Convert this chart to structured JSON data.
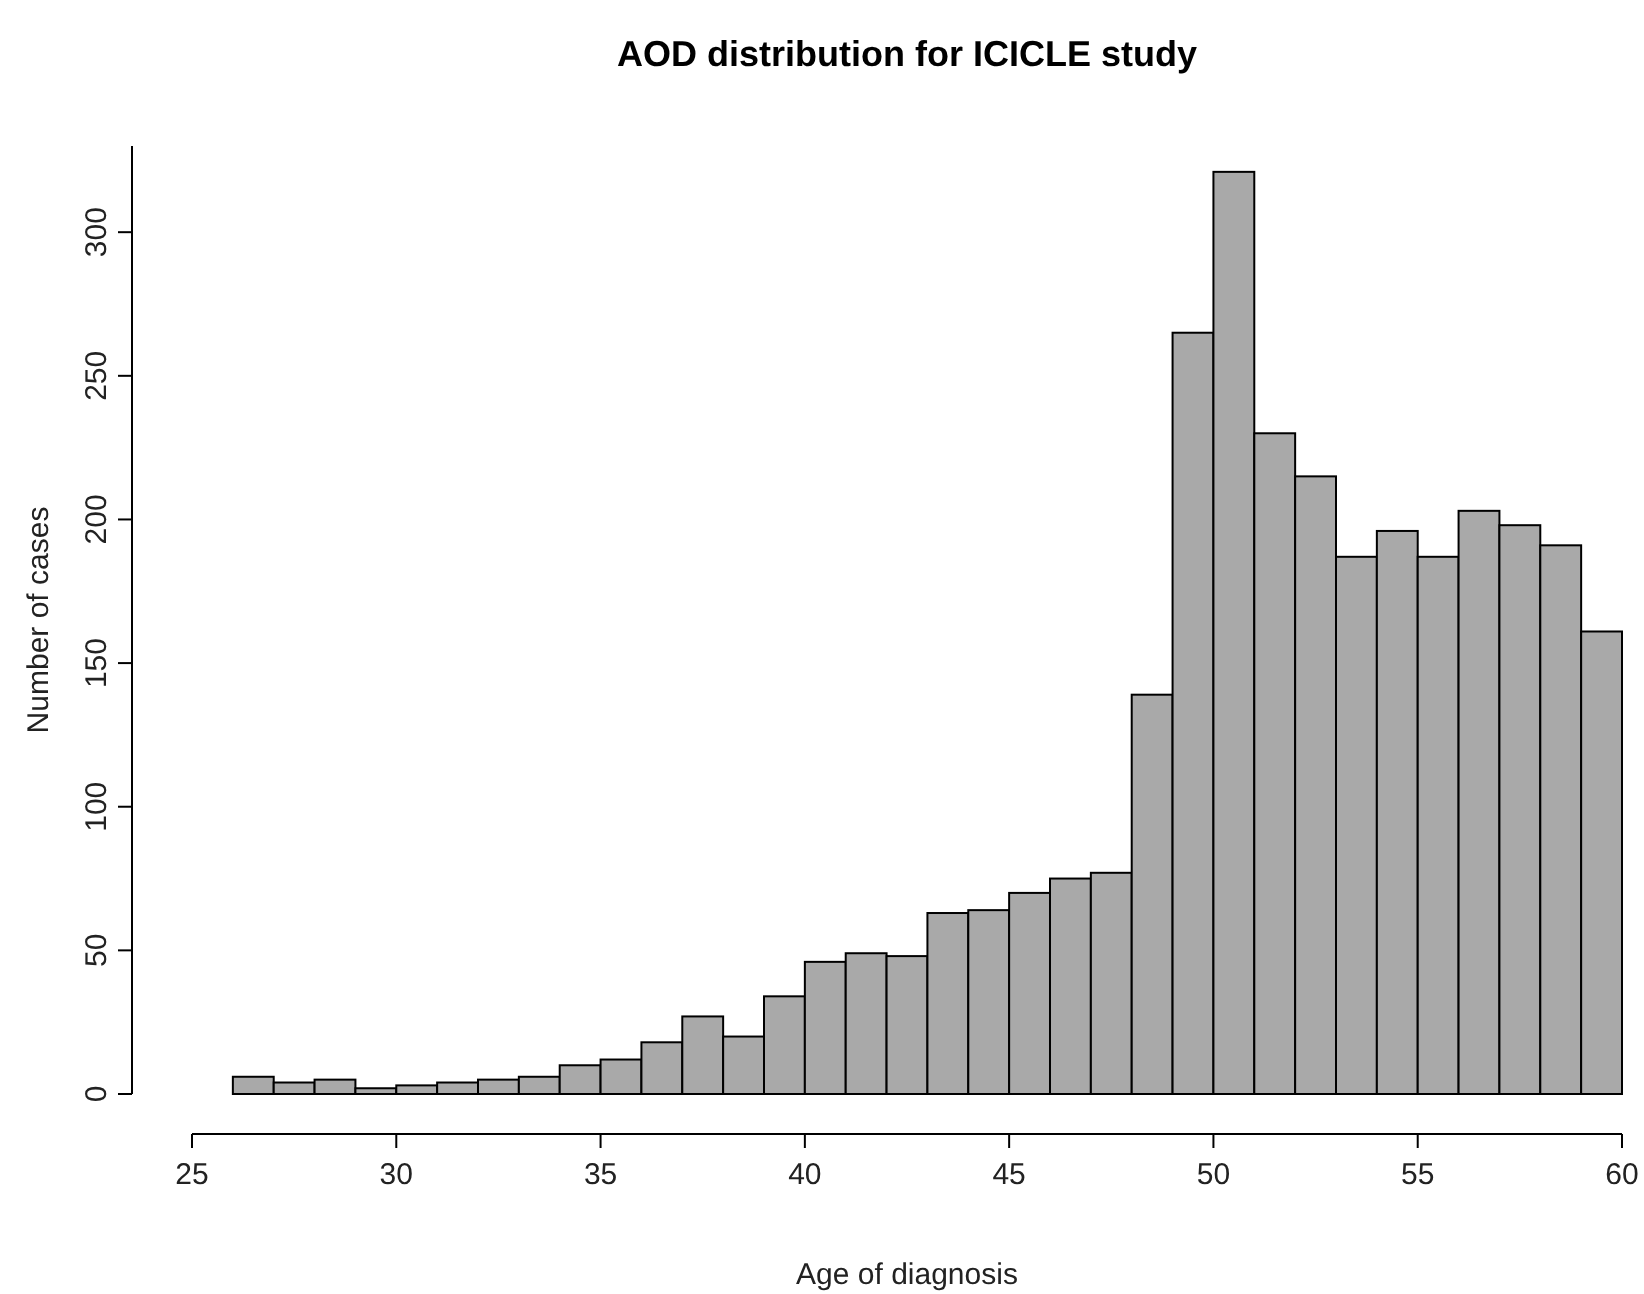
{
  "chart_data": {
    "type": "histogram",
    "title": "AOD distribution for ICICLE study",
    "xlabel": "Age of diagnosis",
    "ylabel": "Number of cases",
    "bins": [
      26,
      27,
      28,
      29,
      30,
      31,
      32,
      33,
      34,
      35,
      36,
      37,
      38,
      39,
      40,
      41,
      42,
      43,
      44,
      45,
      46,
      47,
      48,
      49,
      50,
      51,
      52,
      53,
      54,
      55,
      56,
      57,
      58,
      59,
      60
    ],
    "values": [
      6,
      4,
      5,
      2,
      3,
      4,
      5,
      6,
      10,
      12,
      18,
      27,
      20,
      34,
      46,
      49,
      48,
      63,
      64,
      70,
      75,
      77,
      139,
      265,
      321,
      230,
      215,
      187,
      196,
      187,
      203,
      198,
      191,
      161
    ],
    "color": "#a9a9a9",
    "xlim": [
      25,
      60
    ],
    "ylim": [
      0,
      330
    ],
    "xticks": [
      25,
      30,
      35,
      40,
      45,
      50,
      55,
      60
    ],
    "yticks": [
      0,
      50,
      100,
      150,
      200,
      250,
      300
    ],
    "grid": false
  }
}
